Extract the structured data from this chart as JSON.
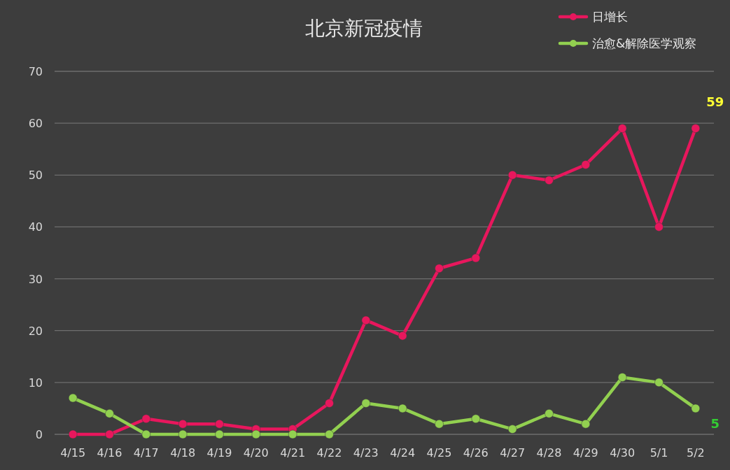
{
  "chart_data": {
    "type": "line",
    "title": "北京新冠疫情",
    "categories": [
      "4/15",
      "4/16",
      "4/17",
      "4/18",
      "4/19",
      "4/20",
      "4/21",
      "4/22",
      "4/23",
      "4/24",
      "4/25",
      "4/26",
      "4/27",
      "4/28",
      "4/29",
      "4/30",
      "5/1",
      "5/2"
    ],
    "series": [
      {
        "name": "日增长",
        "color": "#e8175d",
        "values": [
          0,
          0,
          3,
          2,
          2,
          1,
          1,
          6,
          22,
          19,
          32,
          34,
          50,
          49,
          52,
          59,
          40,
          59
        ],
        "value_labels": [
          null,
          null,
          null,
          null,
          null,
          null,
          null,
          null,
          null,
          null,
          null,
          null,
          null,
          null,
          null,
          null,
          null,
          "59"
        ]
      },
      {
        "name": "治愈&解除医学观察",
        "color": "#92d050",
        "values": [
          7,
          4,
          0,
          0,
          0,
          0,
          0,
          0,
          6,
          5,
          2,
          3,
          1,
          4,
          2,
          11,
          10,
          5
        ],
        "value_labels": [
          null,
          null,
          null,
          null,
          null,
          null,
          null,
          null,
          null,
          null,
          null,
          null,
          null,
          null,
          null,
          null,
          null,
          "5"
        ]
      }
    ],
    "ylim": [
      0,
      70
    ],
    "yticks": [
      0,
      10,
      20,
      30,
      40,
      50,
      60,
      70
    ],
    "grid": "y",
    "legend": "top right",
    "marker": "circle",
    "line_style": "solid"
  }
}
